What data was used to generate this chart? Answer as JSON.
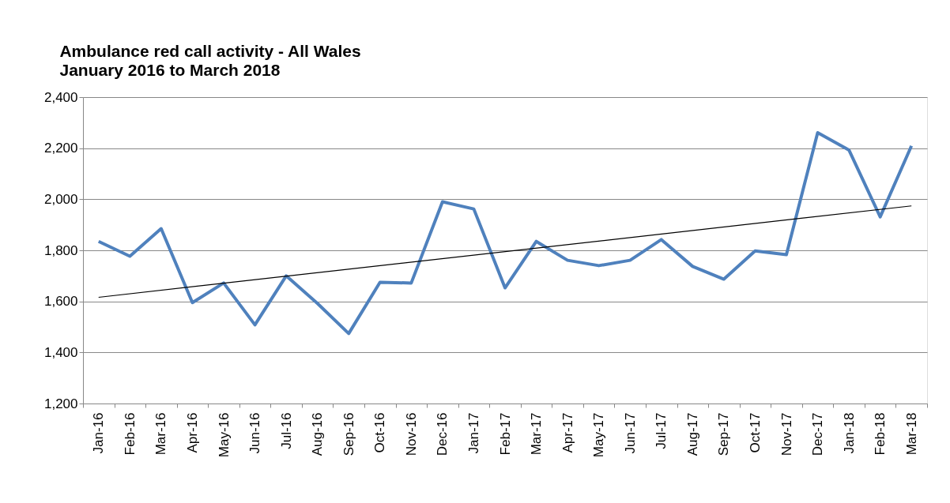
{
  "chart_data": {
    "type": "line",
    "title": "Ambulance red call activity - All Wales",
    "subtitle": "January 2016 to March 2018",
    "categories": [
      "Jan-16",
      "Feb-16",
      "Mar-16",
      "Apr-16",
      "May-16",
      "Jun-16",
      "Jul-16",
      "Aug-16",
      "Sep-16",
      "Oct-16",
      "Nov-16",
      "Dec-16",
      "Jan-17",
      "Feb-17",
      "Mar-17",
      "Apr-17",
      "May-17",
      "Jun-17",
      "Jul-17",
      "Aug-17",
      "Sep-17",
      "Oct-17",
      "Nov-17",
      "Dec-17",
      "Jan-18",
      "Feb-18",
      "Mar-18"
    ],
    "series": [
      {
        "color": "#4f81bd",
        "values": [
          1835,
          1777,
          1885,
          1595,
          1672,
          1508,
          1700,
          1592,
          1474,
          1675,
          1672,
          1990,
          1962,
          1653,
          1835,
          1761,
          1740,
          1761,
          1842,
          1737,
          1687,
          1798,
          1783,
          2261,
          2193,
          1931,
          2209
        ]
      },
      {
        "type": "line",
        "color": "#000000",
        "x": [
          "Jan-16",
          "Mar-18"
        ],
        "values": [
          1616,
          1974
        ]
      }
    ],
    "ylim": [
      1200,
      2400
    ],
    "yticks": [
      {
        "value": 1200,
        "label": "1,200"
      },
      {
        "value": 1400,
        "label": "1,400"
      },
      {
        "value": 1600,
        "label": "1,600"
      },
      {
        "value": 1800,
        "label": "1,800"
      },
      {
        "value": 2000,
        "label": "2,000"
      },
      {
        "value": 2200,
        "label": "2,200"
      },
      {
        "value": 2400,
        "label": "2,400"
      }
    ],
    "grid": "y",
    "marker": "none",
    "line_style": "solid"
  }
}
